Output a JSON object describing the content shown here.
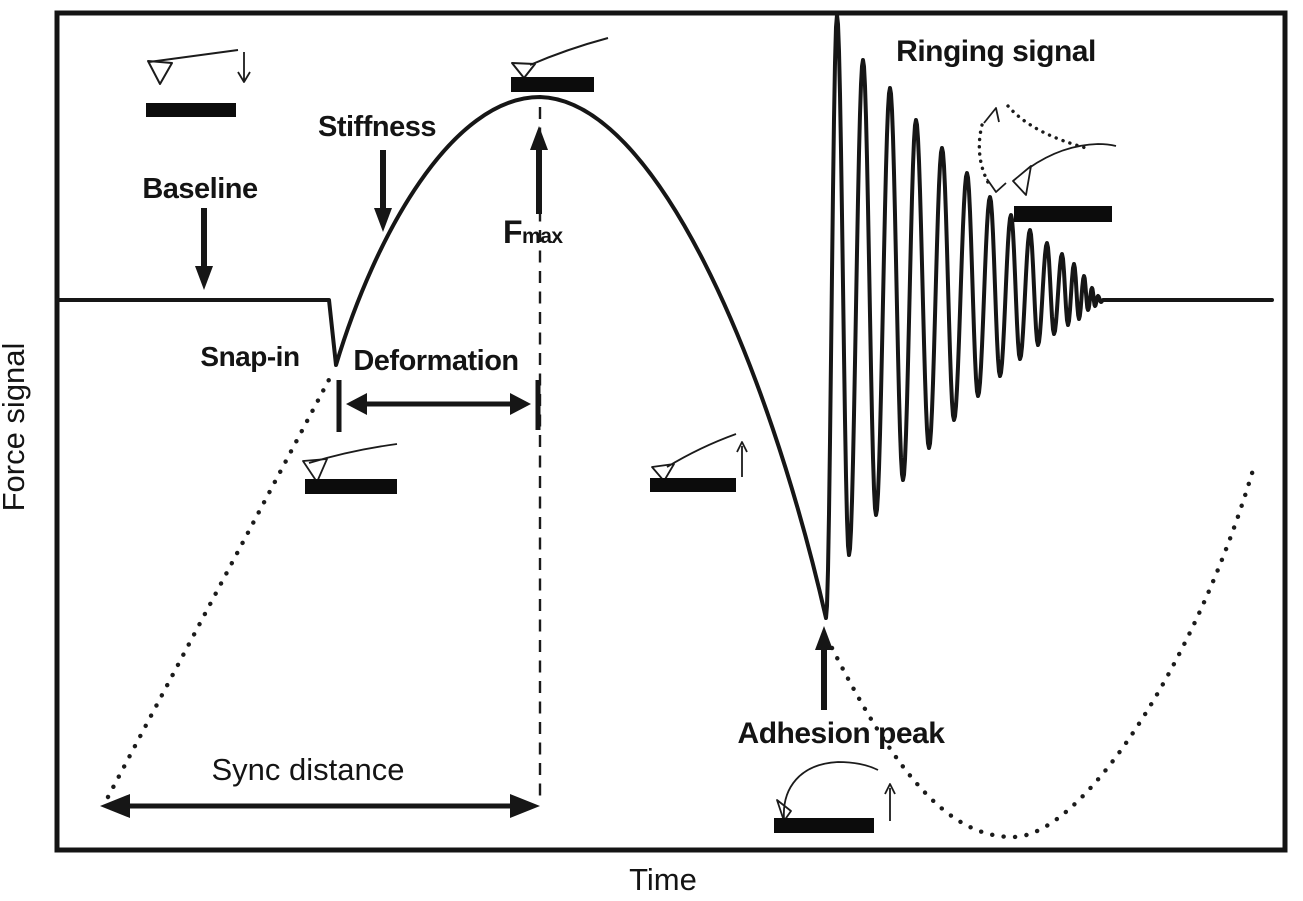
{
  "figure_labels": {
    "ylabel": "Force signal",
    "xlabel": "Time",
    "baseline": "Baseline",
    "stiffness": "Stiffness",
    "snap_in": "Snap-in",
    "deformation": "Deformation",
    "fmax_main": "F",
    "fmax_sub": "max",
    "sync_distance": "Sync distance",
    "adhesion_peak": "Adhesion peak",
    "ringing_signal": "Ringing signal"
  },
  "colors": {
    "ink": "#161616",
    "background": "#ffffff"
  },
  "icons": [
    "approach-cantilever-icon",
    "peak-contact-cantilever-icon",
    "snap-in-cantilever-icon",
    "retract-cantilever-icon",
    "adhesion-cantilever-icon",
    "ringing-cantilever-icon"
  ],
  "chart_data": {
    "type": "line",
    "title": "",
    "xlabel": "Time",
    "ylabel": "Force signal",
    "axes": {
      "frame": true,
      "x_ticks": [],
      "y_ticks": [],
      "units": "schematic (no numeric scale)"
    },
    "legend": "none",
    "series_names": [
      "force_signal_solid",
      "z_position_dotted"
    ],
    "key_points": {
      "baseline_level_y": 300,
      "snap_in": [
        333,
        365
      ],
      "f_max_peak": [
        540,
        97
      ],
      "adhesion_peak": [
        826,
        618
      ],
      "ringing_settle": [
        1098,
        300
      ]
    },
    "force_curve": {
      "start": [
        57,
        300
      ],
      "baseline_end": [
        329,
        300
      ],
      "snap_in_bottom": [
        336,
        365
      ],
      "rise_c1": [
        375,
        235
      ],
      "rise_c2": [
        452,
        97
      ],
      "peak": [
        540,
        97
      ],
      "fall_c1": [
        655,
        100
      ],
      "fall_c2": [
        767,
        360
      ],
      "ringing_extrema": [
        [
          826,
          618
        ],
        [
          837,
          15
        ],
        [
          849,
          555
        ],
        [
          863,
          60
        ],
        [
          876,
          515
        ],
        [
          890,
          88
        ],
        [
          903,
          480
        ],
        [
          916,
          120
        ],
        [
          929,
          448
        ],
        [
          942,
          148
        ],
        [
          954,
          420
        ],
        [
          967,
          173
        ],
        [
          978,
          396
        ],
        [
          990,
          197
        ],
        [
          1000,
          376
        ],
        [
          1011,
          215
        ],
        [
          1020,
          359
        ],
        [
          1030,
          230
        ],
        [
          1038,
          345
        ],
        [
          1047,
          243
        ],
        [
          1054,
          334
        ],
        [
          1062,
          254
        ],
        [
          1068,
          325
        ],
        [
          1074,
          264
        ],
        [
          1079,
          319
        ],
        [
          1084,
          276
        ],
        [
          1088,
          310
        ],
        [
          1092,
          288
        ],
        [
          1095,
          306
        ],
        [
          1098,
          296
        ],
        [
          1101,
          302
        ],
        [
          1103,
          300
        ]
      ],
      "end": [
        1272,
        300
      ]
    },
    "z_curve": {
      "approach": {
        "from": [
          108,
          797
        ],
        "to": [
          332,
          374
        ]
      },
      "retract": {
        "start": [
          832,
          648
        ],
        "c1": [
          900,
          782
        ],
        "c2": [
          952,
          837
        ],
        "mid": [
          1013,
          837
        ],
        "c3": [
          1082,
          837
        ],
        "c4": [
          1195,
          665
        ],
        "end": [
          1253,
          470
        ]
      }
    },
    "sync_vline": {
      "x": 540,
      "y1": 107,
      "y2": 800
    },
    "dimensions": {
      "deformation_span_x": [
        339,
        538
      ],
      "deformation_y": 404,
      "sync_span_x": [
        100,
        540
      ],
      "sync_y": 806
    }
  }
}
